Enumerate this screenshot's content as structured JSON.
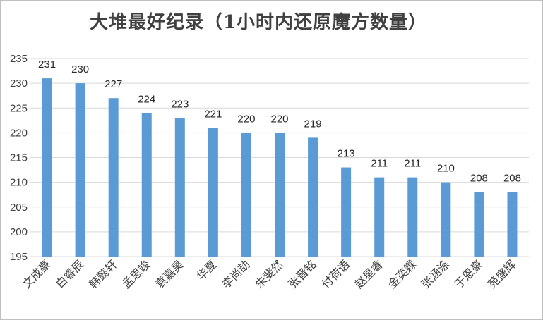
{
  "chart_data": {
    "type": "bar",
    "title": "大堆最好纪录（1小时内还原魔方数量）",
    "categories": [
      "文成豪",
      "白睿辰",
      "韩懿轩",
      "孟思竣",
      "袁嘉昊",
      "华夏",
      "李尚劼",
      "朱斐然",
      "张晋铭",
      "付荷语",
      "赵星睿",
      "金奕霖",
      "张涵涤",
      "于恩豪",
      "苑盛辉"
    ],
    "values": [
      231,
      230,
      227,
      224,
      223,
      221,
      220,
      220,
      219,
      213,
      211,
      211,
      210,
      208,
      208
    ],
    "ylim": [
      195,
      235
    ],
    "yticks": [
      195,
      200,
      205,
      210,
      215,
      220,
      225,
      230,
      235
    ],
    "xlabel": "",
    "ylabel": "",
    "grid": true,
    "bar_color": "#5b9bd5",
    "grid_color": "#d9d9d9"
  }
}
